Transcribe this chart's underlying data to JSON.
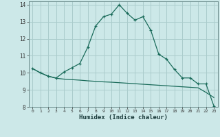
{
  "xlabel": "Humidex (Indice chaleur)",
  "background_color": "#cce8e8",
  "grid_color": "#aacccc",
  "line_color": "#1a6b5a",
  "xlim": [
    -0.5,
    23.5
  ],
  "ylim": [
    8,
    14.2
  ],
  "xticks": [
    0,
    1,
    2,
    3,
    4,
    5,
    6,
    7,
    8,
    9,
    10,
    11,
    12,
    13,
    14,
    15,
    16,
    17,
    18,
    19,
    20,
    21,
    22,
    23
  ],
  "yticks": [
    8,
    9,
    10,
    11,
    12,
    13,
    14
  ],
  "line1_x": [
    0,
    1,
    2,
    3,
    4,
    5,
    6,
    7,
    8,
    9,
    10,
    11,
    12,
    13,
    14,
    15,
    16,
    17,
    18,
    19,
    20,
    21,
    22,
    23
  ],
  "line1_y": [
    10.25,
    10.0,
    9.8,
    9.7,
    10.05,
    10.3,
    10.55,
    11.5,
    12.75,
    13.3,
    13.45,
    14.0,
    13.5,
    13.1,
    13.3,
    12.5,
    11.1,
    10.8,
    10.2,
    9.7,
    9.7,
    9.35,
    9.35,
    8.05
  ],
  "line2_full_x": [
    0,
    1,
    2,
    3,
    4,
    5,
    6,
    7,
    8,
    9,
    10,
    11,
    12,
    13,
    14,
    15,
    16,
    17,
    18,
    19,
    20,
    21,
    22,
    23
  ],
  "line2_full_y": [
    10.25,
    10.0,
    9.8,
    9.68,
    9.63,
    9.6,
    9.57,
    9.53,
    9.5,
    9.47,
    9.45,
    9.42,
    9.39,
    9.36,
    9.33,
    9.3,
    9.27,
    9.24,
    9.21,
    9.18,
    9.15,
    9.12,
    8.85,
    8.55
  ]
}
